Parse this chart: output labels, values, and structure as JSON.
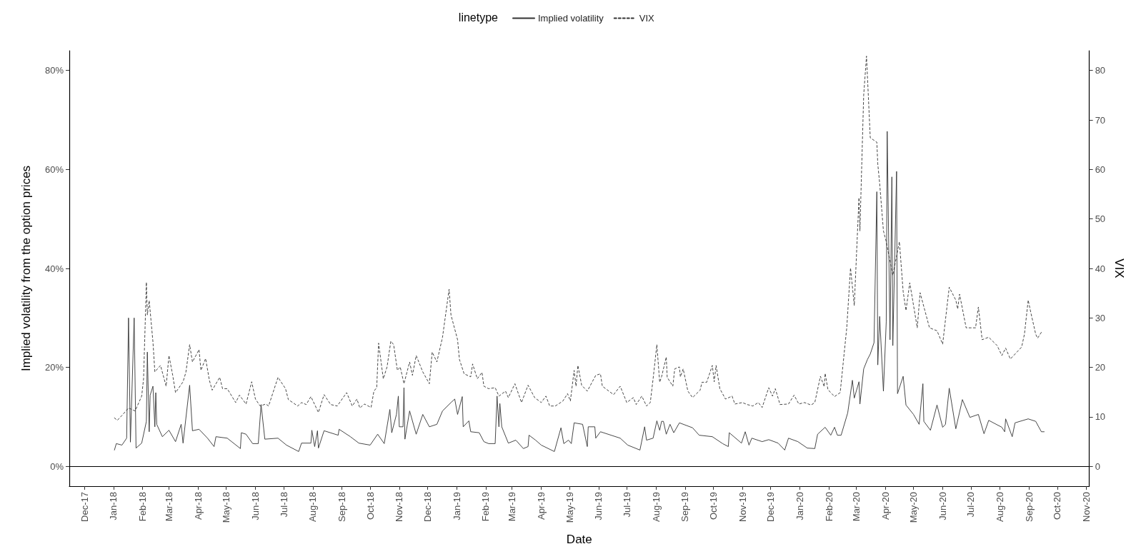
{
  "chart_data": {
    "type": "line",
    "xlabel": "Date",
    "ylabel": "Implied volatility from the option prices",
    "y2label": "VIX",
    "legend_title": "linetype",
    "legend": "top",
    "grid": false,
    "xlim": [
      "2017-11-15",
      "2020-11-04"
    ],
    "xticks": [
      {
        "value": "2017-12-01",
        "label": "Dec-17"
      },
      {
        "value": "2018-01-01",
        "label": "Jan-18"
      },
      {
        "value": "2018-02-01",
        "label": "Feb-18"
      },
      {
        "value": "2018-03-01",
        "label": "Mar-18"
      },
      {
        "value": "2018-04-01",
        "label": "Apr-18"
      },
      {
        "value": "2018-05-01",
        "label": "May-18"
      },
      {
        "value": "2018-06-01",
        "label": "Jun-18"
      },
      {
        "value": "2018-07-01",
        "label": "Jul-18"
      },
      {
        "value": "2018-08-01",
        "label": "Aug-18"
      },
      {
        "value": "2018-09-01",
        "label": "Sep-18"
      },
      {
        "value": "2018-10-01",
        "label": "Oct-18"
      },
      {
        "value": "2018-11-01",
        "label": "Nov-18"
      },
      {
        "value": "2018-12-01",
        "label": "Dec-18"
      },
      {
        "value": "2019-01-01",
        "label": "Jan-19"
      },
      {
        "value": "2019-02-01",
        "label": "Feb-19"
      },
      {
        "value": "2019-03-01",
        "label": "Mar-19"
      },
      {
        "value": "2019-04-01",
        "label": "Apr-19"
      },
      {
        "value": "2019-05-01",
        "label": "May-19"
      },
      {
        "value": "2019-06-01",
        "label": "Jun-19"
      },
      {
        "value": "2019-07-01",
        "label": "Jul-19"
      },
      {
        "value": "2019-08-01",
        "label": "Aug-19"
      },
      {
        "value": "2019-09-01",
        "label": "Sep-19"
      },
      {
        "value": "2019-10-01",
        "label": "Oct-19"
      },
      {
        "value": "2019-11-01",
        "label": "Nov-19"
      },
      {
        "value": "2019-12-01",
        "label": "Dec-19"
      },
      {
        "value": "2020-01-01",
        "label": "Jan-20"
      },
      {
        "value": "2020-02-01",
        "label": "Feb-20"
      },
      {
        "value": "2020-03-01",
        "label": "Mar-20"
      },
      {
        "value": "2020-04-01",
        "label": "Apr-20"
      },
      {
        "value": "2020-05-01",
        "label": "May-20"
      },
      {
        "value": "2020-06-01",
        "label": "Jun-20"
      },
      {
        "value": "2020-07-01",
        "label": "Jul-20"
      },
      {
        "value": "2020-08-01",
        "label": "Aug-20"
      },
      {
        "value": "2020-09-01",
        "label": "Sep-20"
      },
      {
        "value": "2020-10-01",
        "label": "Oct-20"
      },
      {
        "value": "2020-11-01",
        "label": "Nov-20"
      }
    ],
    "ylim": [
      -4,
      84
    ],
    "yticks": [
      {
        "value": 0,
        "label": "0%"
      },
      {
        "value": 20,
        "label": "20%"
      },
      {
        "value": 40,
        "label": "40%"
      },
      {
        "value": 60,
        "label": "60%"
      },
      {
        "value": 80,
        "label": "80%"
      }
    ],
    "y2lim": [
      -4,
      84
    ],
    "y2ticks": [
      0,
      10,
      20,
      30,
      40,
      50,
      60,
      70,
      80
    ],
    "ref_lines": [
      {
        "axis": "y",
        "value": 0,
        "color": "#000000",
        "line_style": "solid"
      }
    ],
    "series": [
      {
        "name": "Implied volatility",
        "color": "#333333",
        "line_style": "solid",
        "x": [
          "2018-01-02",
          "2018-01-04",
          "2018-01-10",
          "2018-01-15",
          "2018-01-17",
          "2018-01-19",
          "2018-01-23",
          "2018-01-25",
          "2018-01-31",
          "2018-02-05",
          "2018-02-06",
          "2018-02-08",
          "2018-02-09",
          "2018-02-12",
          "2018-02-14",
          "2018-02-15",
          "2018-02-16",
          "2018-02-22",
          "2018-03-01",
          "2018-03-08",
          "2018-03-14",
          "2018-03-16",
          "2018-03-23",
          "2018-03-26",
          "2018-04-02",
          "2018-04-11",
          "2018-04-18",
          "2018-04-20",
          "2018-05-02",
          "2018-05-16",
          "2018-05-17",
          "2018-05-22",
          "2018-05-29",
          "2018-06-04",
          "2018-06-07",
          "2018-06-11",
          "2018-06-25",
          "2018-07-04",
          "2018-07-17",
          "2018-07-20",
          "2018-07-30",
          "2018-07-31",
          "2018-08-03",
          "2018-08-06",
          "2018-08-07",
          "2018-08-13",
          "2018-08-28",
          "2018-08-29",
          "2018-09-10",
          "2018-09-19",
          "2018-10-01",
          "2018-10-09",
          "2018-10-16",
          "2018-10-22",
          "2018-10-24",
          "2018-10-29",
          "2018-10-31",
          "2018-11-01",
          "2018-11-05",
          "2018-11-06",
          "2018-11-07",
          "2018-11-12",
          "2018-11-19",
          "2018-11-26",
          "2018-12-03",
          "2018-12-11",
          "2018-12-17",
          "2018-12-26",
          "2018-12-30",
          "2019-01-02",
          "2019-01-07",
          "2019-01-08",
          "2019-01-14",
          "2019-01-16",
          "2019-01-25",
          "2019-01-30",
          "2019-02-04",
          "2019-02-11",
          "2019-02-13",
          "2019-02-15",
          "2019-02-16",
          "2019-02-18",
          "2019-02-25",
          "2019-03-05",
          "2019-03-13",
          "2019-03-18",
          "2019-03-19",
          "2019-03-26",
          "2019-04-01",
          "2019-04-15",
          "2019-04-22",
          "2019-04-25",
          "2019-04-30",
          "2019-05-03",
          "2019-05-06",
          "2019-05-15",
          "2019-05-20",
          "2019-05-21",
          "2019-05-28",
          "2019-05-29",
          "2019-06-03",
          "2019-06-24",
          "2019-07-02",
          "2019-07-15",
          "2019-07-20",
          "2019-07-22",
          "2019-07-29",
          "2019-08-02",
          "2019-08-05",
          "2019-08-07",
          "2019-08-09",
          "2019-08-12",
          "2019-08-16",
          "2019-08-20",
          "2019-08-26",
          "2019-09-09",
          "2019-09-16",
          "2019-09-30",
          "2019-10-11",
          "2019-10-17",
          "2019-10-18",
          "2019-10-31",
          "2019-11-04",
          "2019-11-08",
          "2019-11-11",
          "2019-11-22",
          "2019-11-29",
          "2019-12-09",
          "2019-12-16",
          "2019-12-20",
          "2019-12-30",
          "2020-01-09",
          "2020-01-17",
          "2020-01-20",
          "2020-01-28",
          "2020-02-03",
          "2020-02-07",
          "2020-02-10",
          "2020-02-14",
          "2020-02-21",
          "2020-02-26",
          "2020-02-28",
          "2020-03-04",
          "2020-03-05",
          "2020-03-09",
          "2020-03-13",
          "2020-03-16",
          "2020-03-20",
          "2020-03-23",
          "2020-03-24",
          "2020-03-26",
          "2020-03-30",
          "2020-04-02",
          "2020-04-03",
          "2020-04-06",
          "2020-04-08",
          "2020-04-09",
          "2020-04-13",
          "2020-04-14",
          "2020-04-20",
          "2020-04-23",
          "2020-05-01",
          "2020-05-07",
          "2020-05-11",
          "2020-05-12",
          "2020-05-19",
          "2020-05-26",
          "2020-06-01",
          "2020-06-04",
          "2020-06-08",
          "2020-06-15",
          "2020-06-22",
          "2020-06-30",
          "2020-07-09",
          "2020-07-15",
          "2020-07-20",
          "2020-08-03",
          "2020-08-06",
          "2020-08-07",
          "2020-08-14",
          "2020-08-17",
          "2020-08-31",
          "2020-09-08",
          "2020-09-14",
          "2020-09-17"
        ],
        "values": [
          3.3,
          4.6,
          4.3,
          5.7,
          30.0,
          4.9,
          30.0,
          3.7,
          4.7,
          9.1,
          23.1,
          7.0,
          14.4,
          16.2,
          8.0,
          14.9,
          8.5,
          6.0,
          7.3,
          5.0,
          8.5,
          4.7,
          16.4,
          7.2,
          7.5,
          5.7,
          4.0,
          6.0,
          5.7,
          3.6,
          6.8,
          6.5,
          4.6,
          4.6,
          12.5,
          5.5,
          5.7,
          4.3,
          3.0,
          4.7,
          4.7,
          7.3,
          4.0,
          7.2,
          3.7,
          7.2,
          6.3,
          7.5,
          6.0,
          4.7,
          4.3,
          6.5,
          4.6,
          11.5,
          6.8,
          10.5,
          14.2,
          8.0,
          8.0,
          15.9,
          5.5,
          11.2,
          6.5,
          10.5,
          8.0,
          8.5,
          11.2,
          12.9,
          13.6,
          10.5,
          14.1,
          8.0,
          9.2,
          7.0,
          6.8,
          5.0,
          4.6,
          4.6,
          14.2,
          8.0,
          12.7,
          8.0,
          4.7,
          5.3,
          3.6,
          4.0,
          6.3,
          5.3,
          4.3,
          3.0,
          7.8,
          4.6,
          5.3,
          4.6,
          8.8,
          8.5,
          4.0,
          8.0,
          8.0,
          5.7,
          7.0,
          5.7,
          4.3,
          3.3,
          8.0,
          5.3,
          5.7,
          9.2,
          7.3,
          9.1,
          9.1,
          6.5,
          8.5,
          6.8,
          8.8,
          7.8,
          6.3,
          6.0,
          4.6,
          4.0,
          6.8,
          4.7,
          7.0,
          4.3,
          5.7,
          5.0,
          5.4,
          4.7,
          3.3,
          5.7,
          5.0,
          3.7,
          3.6,
          6.5,
          7.9,
          6.3,
          7.9,
          6.3,
          6.3,
          10.8,
          17.4,
          13.8,
          17.1,
          12.6,
          19.7,
          21.6,
          22.7,
          25.0,
          55.5,
          20.5,
          30.3,
          15.2,
          29.2,
          67.7,
          25.6,
          58.5,
          24.4,
          59.6,
          14.7,
          18.2,
          12.4,
          10.5,
          8.5,
          16.7,
          9.1,
          7.3,
          12.4,
          7.9,
          8.5,
          15.8,
          7.6,
          13.5,
          9.9,
          10.5,
          6.6,
          9.3,
          7.9,
          7.0,
          9.6,
          6.0,
          8.8,
          9.6,
          9.1,
          7.0,
          7.0
        ]
      },
      {
        "name": "VIX",
        "color": "#333333",
        "line_style": "dashed",
        "x": [
          "2018-01-02",
          "2018-01-05",
          "2018-01-11",
          "2018-01-17",
          "2018-01-24",
          "2018-01-31",
          "2018-02-02",
          "2018-02-05",
          "2018-02-06",
          "2018-02-08",
          "2018-02-12",
          "2018-02-14",
          "2018-02-20",
          "2018-02-26",
          "2018-03-01",
          "2018-03-05",
          "2018-03-08",
          "2018-03-16",
          "2018-03-19",
          "2018-03-23",
          "2018-03-26",
          "2018-04-02",
          "2018-04-04",
          "2018-04-09",
          "2018-04-13",
          "2018-04-16",
          "2018-04-24",
          "2018-04-27",
          "2018-05-02",
          "2018-05-11",
          "2018-05-15",
          "2018-05-22",
          "2018-05-28",
          "2018-06-01",
          "2018-06-06",
          "2018-06-12",
          "2018-06-15",
          "2018-06-25",
          "2018-07-03",
          "2018-07-06",
          "2018-07-16",
          "2018-07-20",
          "2018-07-25",
          "2018-07-30",
          "2018-08-07",
          "2018-08-13",
          "2018-08-20",
          "2018-08-27",
          "2018-09-06",
          "2018-09-12",
          "2018-09-17",
          "2018-09-20",
          "2018-09-25",
          "2018-10-02",
          "2018-10-05",
          "2018-10-08",
          "2018-10-10",
          "2018-10-15",
          "2018-10-19",
          "2018-10-23",
          "2018-10-26",
          "2018-10-30",
          "2018-11-02",
          "2018-11-06",
          "2018-11-12",
          "2018-11-15",
          "2018-11-19",
          "2018-11-26",
          "2018-12-03",
          "2018-12-06",
          "2018-12-11",
          "2018-12-17",
          "2018-12-24",
          "2018-12-26",
          "2019-01-02",
          "2019-01-04",
          "2019-01-09",
          "2019-01-16",
          "2019-01-18",
          "2019-01-23",
          "2019-01-28",
          "2019-01-30",
          "2019-02-04",
          "2019-02-11",
          "2019-02-15",
          "2019-02-22",
          "2019-02-25",
          "2019-03-04",
          "2019-03-11",
          "2019-03-18",
          "2019-03-25",
          "2019-04-01",
          "2019-04-06",
          "2019-04-10",
          "2019-04-16",
          "2019-04-24",
          "2019-04-29",
          "2019-05-02",
          "2019-05-06",
          "2019-05-08",
          "2019-05-10",
          "2019-05-14",
          "2019-05-20",
          "2019-05-29",
          "2019-06-03",
          "2019-06-05",
          "2019-06-17",
          "2019-06-24",
          "2019-07-01",
          "2019-07-08",
          "2019-07-11",
          "2019-07-17",
          "2019-07-22",
          "2019-07-26",
          "2019-07-29",
          "2019-08-02",
          "2019-08-05",
          "2019-08-07",
          "2019-08-12",
          "2019-08-13",
          "2019-08-19",
          "2019-08-21",
          "2019-08-26",
          "2019-08-27",
          "2019-08-30",
          "2019-09-04",
          "2019-09-09",
          "2019-09-17",
          "2019-09-19",
          "2019-09-24",
          "2019-09-30",
          "2019-10-02",
          "2019-10-04",
          "2019-10-08",
          "2019-10-14",
          "2019-10-21",
          "2019-10-24",
          "2019-11-01",
          "2019-11-06",
          "2019-11-12",
          "2019-11-18",
          "2019-11-22",
          "2019-11-29",
          "2019-12-03",
          "2019-12-06",
          "2019-12-11",
          "2019-12-20",
          "2019-12-26",
          "2019-12-31",
          "2020-01-06",
          "2020-01-13",
          "2020-01-17",
          "2020-01-23",
          "2020-01-27",
          "2020-01-28",
          "2020-01-31",
          "2020-02-07",
          "2020-02-13",
          "2020-02-20",
          "2020-02-24",
          "2020-02-28",
          "2020-03-04",
          "2020-03-05",
          "2020-03-09",
          "2020-03-12",
          "2020-03-16",
          "2020-03-23",
          "2020-03-24",
          "2020-03-26",
          "2020-03-30",
          "2020-04-02",
          "2020-04-09",
          "2020-04-16",
          "2020-04-20",
          "2020-04-23",
          "2020-04-27",
          "2020-05-05",
          "2020-05-08",
          "2020-05-18",
          "2020-05-26",
          "2020-06-01",
          "2020-06-08",
          "2020-06-15",
          "2020-06-17",
          "2020-06-19",
          "2020-06-26",
          "2020-07-06",
          "2020-07-09",
          "2020-07-13",
          "2020-07-20",
          "2020-07-29",
          "2020-08-03",
          "2020-08-07",
          "2020-08-12",
          "2020-08-24",
          "2020-08-27",
          "2020-08-31",
          "2020-09-03",
          "2020-09-08",
          "2020-09-10",
          "2020-09-15"
        ],
        "values": [
          9.8,
          9.3,
          10.5,
          11.8,
          11.2,
          14.2,
          17.7,
          37.2,
          30.6,
          33.5,
          25.1,
          19.1,
          20.4,
          16.2,
          22.4,
          18.4,
          14.9,
          17.1,
          19.0,
          24.6,
          21.1,
          23.6,
          19.4,
          21.8,
          17.4,
          15.4,
          18.0,
          15.7,
          15.7,
          12.9,
          14.4,
          12.6,
          17.1,
          13.6,
          12.2,
          12.6,
          12.2,
          18.0,
          15.7,
          13.5,
          12.2,
          12.9,
          12.5,
          14.1,
          10.9,
          14.5,
          12.5,
          12.2,
          14.9,
          12.2,
          13.6,
          11.8,
          12.6,
          11.9,
          15.2,
          15.9,
          24.9,
          17.7,
          20.1,
          25.3,
          24.6,
          19.4,
          20.1,
          16.7,
          21.1,
          18.4,
          22.4,
          19.1,
          16.7,
          23.1,
          21.1,
          26.1,
          35.8,
          30.6,
          25.6,
          21.6,
          18.7,
          18.1,
          20.7,
          17.7,
          19.0,
          16.2,
          15.7,
          15.9,
          14.2,
          15.2,
          13.9,
          16.7,
          12.9,
          16.4,
          13.9,
          12.9,
          14.2,
          12.2,
          12.2,
          13.2,
          14.7,
          13.2,
          19.4,
          16.2,
          20.4,
          16.4,
          15.2,
          18.4,
          18.7,
          16.2,
          14.5,
          16.2,
          12.9,
          13.9,
          12.5,
          14.2,
          12.2,
          12.9,
          17.7,
          24.6,
          17.0,
          18.1,
          22.1,
          18.0,
          16.2,
          19.7,
          20.1,
          18.1,
          19.7,
          15.2,
          13.9,
          15.4,
          17.0,
          17.0,
          20.4,
          17.1,
          20.4,
          15.7,
          13.6,
          14.2,
          12.6,
          12.9,
          12.5,
          12.2,
          12.9,
          11.9,
          15.9,
          14.2,
          15.7,
          12.5,
          12.6,
          14.4,
          12.6,
          12.9,
          12.4,
          12.9,
          18.2,
          16.1,
          18.8,
          15.5,
          14.1,
          14.9,
          28.0,
          40.1,
          32.5,
          54.3,
          47.6,
          75.0,
          82.9,
          66.4,
          65.5,
          61.1,
          57.2,
          47.6,
          45.4,
          38.6,
          45.4,
          35.3,
          31.5,
          37.1,
          28.0,
          35.1,
          28.0,
          27.4,
          24.7,
          36.2,
          33.6,
          31.8,
          34.8,
          28.0,
          28.0,
          32.2,
          25.6,
          26.1,
          24.4,
          22.4,
          23.9,
          21.7,
          24.1,
          26.7,
          33.6,
          30.9,
          26.7,
          25.9,
          27.4
        ]
      }
    ]
  }
}
